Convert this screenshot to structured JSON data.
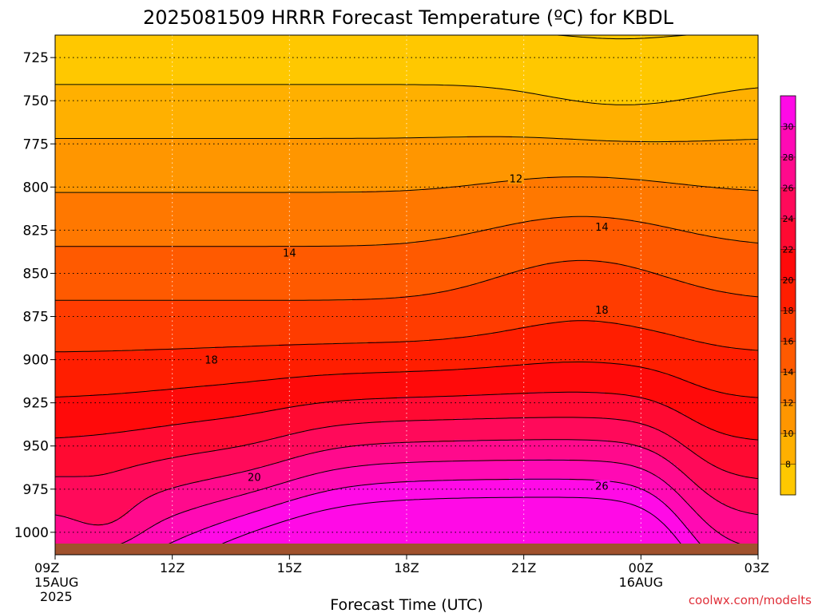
{
  "chart_data": {
    "type": "heatmap",
    "title": "2025081509 HRRR Forecast Temperature (ºC) for KBDL",
    "xlabel": "Forecast Time (UTC)",
    "ylabel": "",
    "credit": "coolwx.com/modelts",
    "x_ticks": [
      {
        "label": "09Z",
        "sub1": "15AUG",
        "sub2": "2025",
        "hour": 0
      },
      {
        "label": "12Z",
        "sub1": "",
        "sub2": "",
        "hour": 3
      },
      {
        "label": "15Z",
        "sub1": "",
        "sub2": "",
        "hour": 6
      },
      {
        "label": "18Z",
        "sub1": "",
        "sub2": "",
        "hour": 9
      },
      {
        "label": "21Z",
        "sub1": "",
        "sub2": "",
        "hour": 12
      },
      {
        "label": "00Z",
        "sub1": "16AUG",
        "sub2": "",
        "hour": 15
      },
      {
        "label": "03Z",
        "sub1": "",
        "sub2": "",
        "hour": 18
      }
    ],
    "x_range_hours": [
      0,
      18
    ],
    "y_ticks": [
      725,
      750,
      775,
      800,
      825,
      850,
      875,
      900,
      925,
      950,
      975,
      1000
    ],
    "y_range_hpa": [
      1013,
      712
    ],
    "grid": true,
    "surface_pressure_hpa": 1012,
    "colorbar": {
      "placement": "right",
      "levels": [
        6,
        8,
        10,
        12,
        14,
        16,
        18,
        20,
        22,
        24,
        26,
        28,
        30,
        32
      ],
      "tick_labels": [
        8,
        10,
        12,
        14,
        16,
        18,
        20,
        22,
        24,
        26,
        28,
        30
      ],
      "colors": [
        "#ffc800",
        "#ffb000",
        "#ff9600",
        "#ff7800",
        "#ff5a00",
        "#ff3c00",
        "#ff1e00",
        "#ff0a0a",
        "#ff0a32",
        "#ff0a5a",
        "#ff0a8c",
        "#ff0ab4",
        "#ff0ae6"
      ]
    },
    "contour_labels": [
      {
        "text": "12",
        "hour": 11.8,
        "hpa": 795
      },
      {
        "text": "14",
        "hour": 6.0,
        "hpa": 838
      },
      {
        "text": "14",
        "hour": 14.0,
        "hpa": 823
      },
      {
        "text": "18",
        "hour": 4.0,
        "hpa": 900
      },
      {
        "text": "18",
        "hour": 14.0,
        "hpa": 871
      },
      {
        "text": "20",
        "hour": 5.1,
        "hpa": 968
      },
      {
        "text": "26",
        "hour": 14.0,
        "hpa": 973
      }
    ]
  }
}
